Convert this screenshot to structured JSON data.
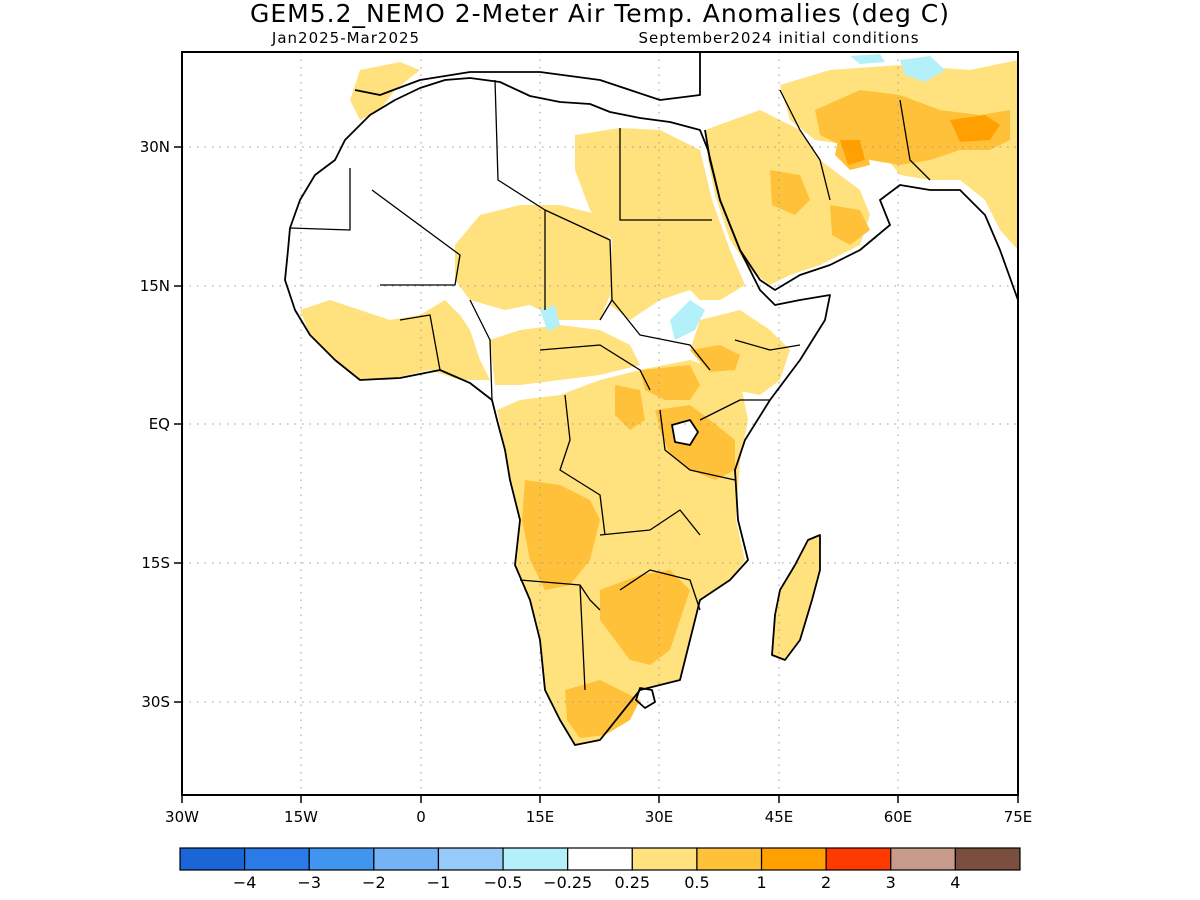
{
  "title": "GEM5.2_NEMO 2-Meter Air Temp. Anomalies (deg C)",
  "period": "Jan2025-Mar2025",
  "init": "September2024 initial conditions",
  "lon_ticks": [
    "30W",
    "15W",
    "0",
    "15E",
    "30E",
    "45E",
    "60E",
    "75E"
  ],
  "lat_ticks": [
    "30N",
    "15N",
    "EQ",
    "15S",
    "30S"
  ],
  "colorbar": {
    "colors": [
      "#1a66d6",
      "#2a7ae8",
      "#3f95f0",
      "#74b4f6",
      "#96cbf9",
      "#b4f0fa",
      "#ffffff",
      "#ffe27e",
      "#ffc13a",
      "#ff9f00",
      "#ff3a00",
      "#c89a8c",
      "#7b4f3f"
    ],
    "labels": [
      "−4",
      "−3",
      "−2",
      "−1",
      "−0.5",
      "−0.25",
      "0.25",
      "0.5",
      "1",
      "2",
      "3",
      "4"
    ]
  },
  "legend_colors": {
    "weak_warm": "#ffe27e",
    "warm": "#ffc13a",
    "hot": "#ff9f00",
    "cool": "#b4f0fa",
    "neutral": "#ffffff"
  }
}
